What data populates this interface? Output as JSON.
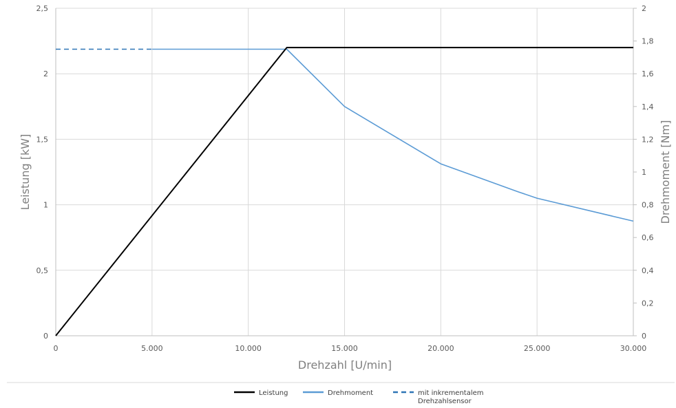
{
  "chart_data": {
    "type": "line",
    "title": "",
    "xlabel": "Drehzahl [U/min]",
    "ylabel_left": "Leistung [kW]",
    "ylabel_right": "Drehmoment [Nm]",
    "xlim": [
      0,
      30000
    ],
    "ylim_left": [
      0,
      2.5
    ],
    "ylim_right": [
      0,
      2
    ],
    "grid": true,
    "legend_position": "bottom",
    "x_ticks": [
      "0",
      "5.000",
      "10.000",
      "15.000",
      "20.000",
      "25.000",
      "30.000"
    ],
    "x_tick_values": [
      0,
      5000,
      10000,
      15000,
      20000,
      25000,
      30000
    ],
    "y_left_ticks": [
      "0",
      "0,5",
      "1",
      "1,5",
      "2",
      "2,5"
    ],
    "y_left_tick_values": [
      0,
      0.5,
      1,
      1.5,
      2,
      2.5
    ],
    "y_right_ticks": [
      "0",
      "0,2",
      "0,4",
      "0,6",
      "0,8",
      "1",
      "1,2",
      "1,4",
      "1,6",
      "1,8",
      "2"
    ],
    "y_right_tick_values": [
      0,
      0.2,
      0.4,
      0.6,
      0.8,
      1,
      1.2,
      1.4,
      1.6,
      1.8,
      2
    ],
    "series": [
      {
        "name": "Leistung",
        "axis": "left",
        "color": "#000000",
        "dash": "solid",
        "x": [
          0,
          12000,
          30000
        ],
        "y": [
          0,
          2.2,
          2.2
        ]
      },
      {
        "name": "Drehmoment",
        "axis": "right",
        "color": "#5b9bd5",
        "dash": "solid",
        "x": [
          5000,
          12000,
          15000,
          20000,
          24000,
          25000,
          30000
        ],
        "y": [
          1.75,
          1.75,
          1.4,
          1.05,
          0.88,
          0.84,
          0.7
        ]
      },
      {
        "name": "mit inkrementalem Drehzahlsensor",
        "name_lines": [
          "mit inkrementalem",
          "Drehzahlsensor"
        ],
        "axis": "right",
        "color": "#2e75b6",
        "dash": "dashed",
        "x": [
          0,
          5000
        ],
        "y": [
          1.75,
          1.75
        ]
      }
    ]
  }
}
